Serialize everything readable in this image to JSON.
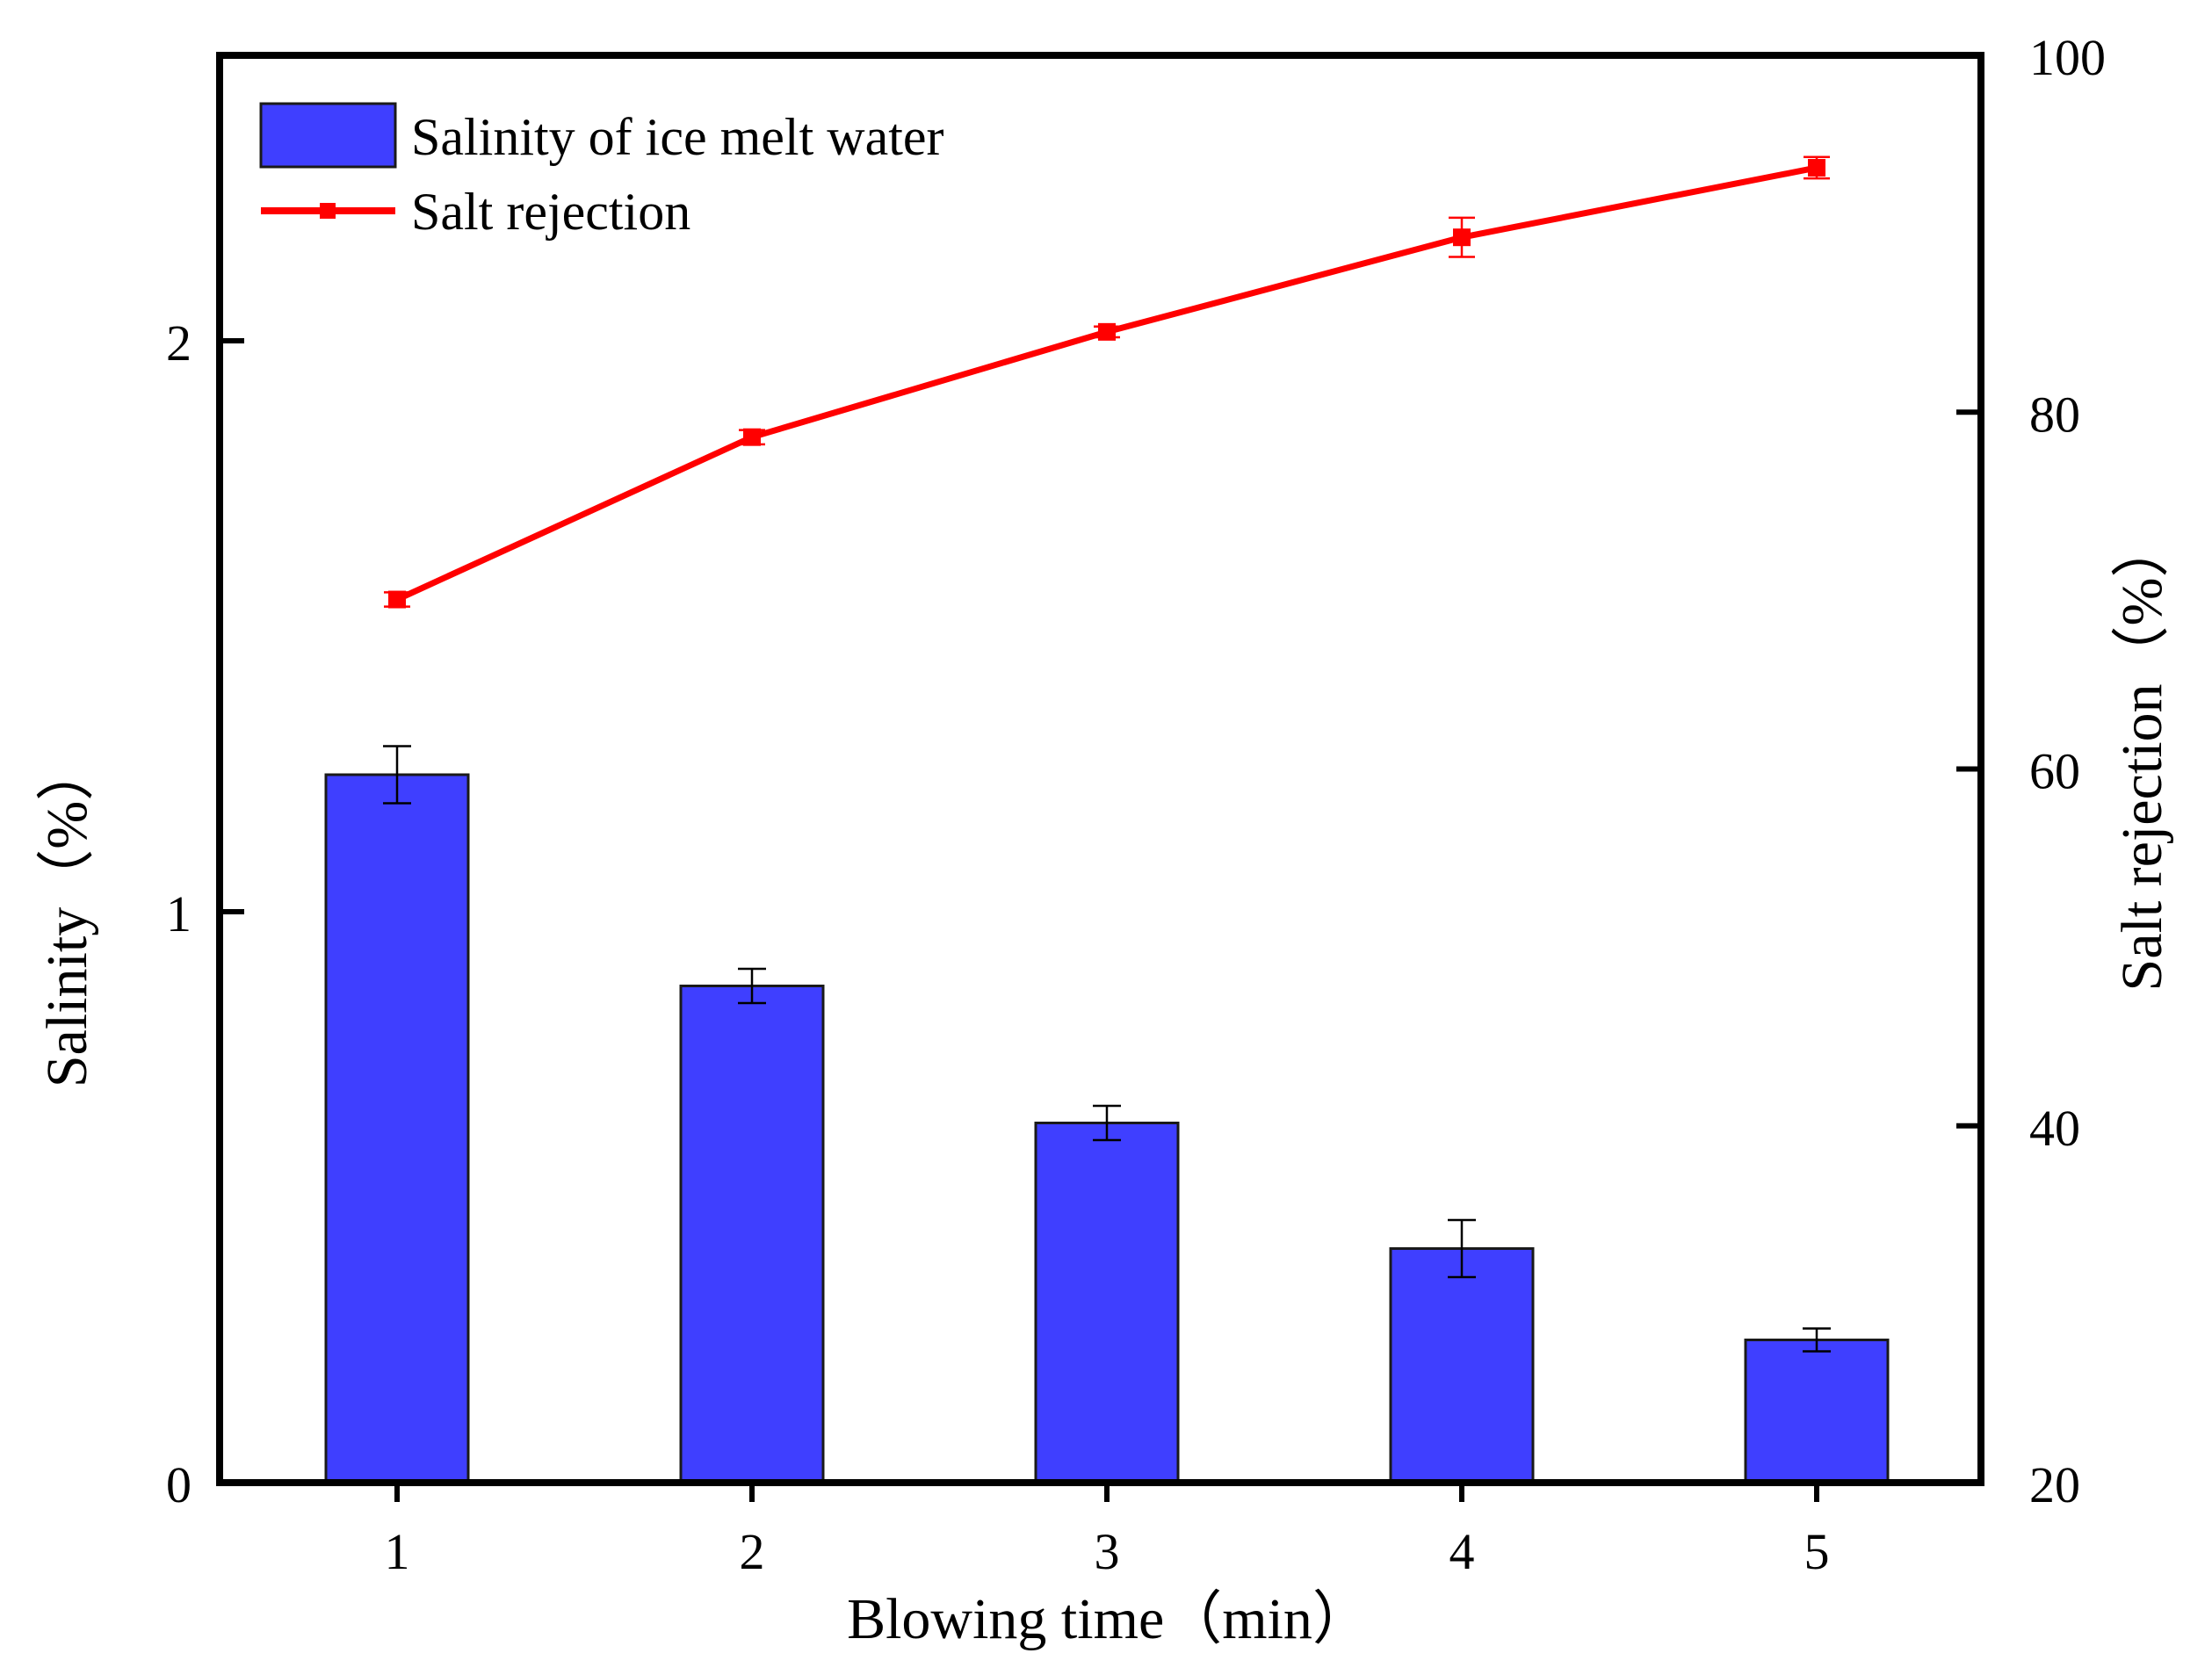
{
  "chart_data": {
    "type": "bar",
    "categories": [
      "1",
      "2",
      "3",
      "4",
      "5"
    ],
    "xlabel": "Blowing time（min）",
    "ylabel": "Salinity（%）",
    "y2label": "Salt rejection（%）",
    "x_ticks": [
      "1",
      "2",
      "3",
      "4",
      "5"
    ],
    "y_ticks": [
      "0",
      "1",
      "2"
    ],
    "y2_ticks": [
      "20",
      "40",
      "60",
      "80",
      "100"
    ],
    "ylim": [
      0,
      2.5
    ],
    "y2lim": [
      20,
      100
    ],
    "grid": false,
    "legend_position": "top-left",
    "series": [
      {
        "name": "Salinity of ice melt water",
        "type": "bar",
        "axis": "left",
        "values": [
          1.24,
          0.87,
          0.63,
          0.41,
          0.25
        ],
        "error": [
          0.05,
          0.03,
          0.03,
          0.05,
          0.02
        ],
        "color": "#3F3FFF"
      },
      {
        "name": "Salt rejection",
        "type": "line",
        "axis": "right",
        "values": [
          69.5,
          78.6,
          84.5,
          89.8,
          93.7
        ],
        "error": [
          0.4,
          0.4,
          0.3,
          1.1,
          0.6
        ],
        "color": "#FF0000"
      }
    ]
  }
}
